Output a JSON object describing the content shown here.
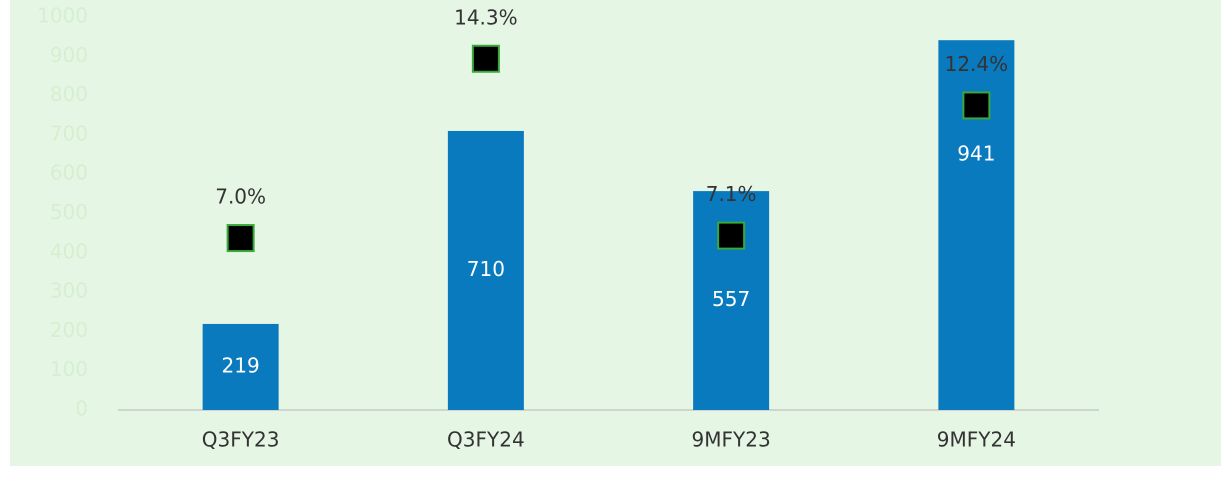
{
  "chart_data": {
    "type": "bar",
    "categories": [
      "Q3FY23",
      "Q3FY24",
      "9MFY23",
      "9MFY24"
    ],
    "series": [
      {
        "values": [
          219,
          710,
          557,
          941
        ],
        "color": "#0a7abf"
      },
      {
        "type": "scatter",
        "axis": "y2",
        "values": [
          7.0,
          14.3,
          7.1,
          12.4
        ],
        "value_labels": [
          "7.0%",
          "14.3%",
          "7.1%",
          "12.4%"
        ],
        "color": "#000000"
      }
    ],
    "ylim": [
      0,
      1000
    ],
    "yticks": [
      0,
      100,
      200,
      300,
      400,
      500,
      600,
      700,
      800,
      900,
      1000
    ],
    "y2lim": [
      0,
      16
    ]
  }
}
